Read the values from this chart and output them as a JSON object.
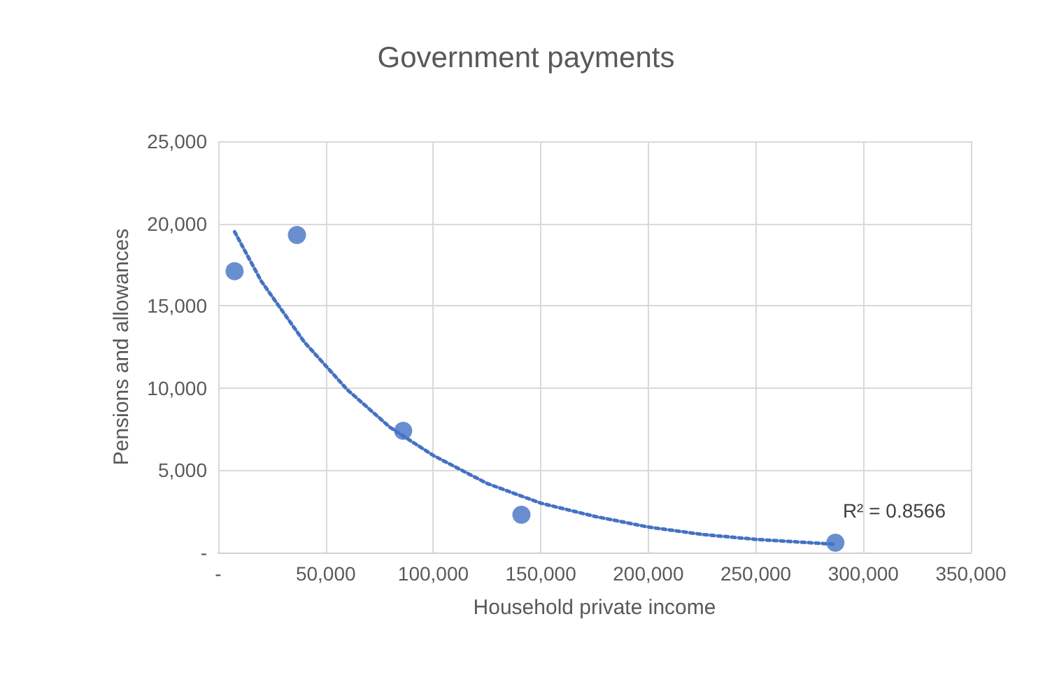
{
  "chart_data": {
    "type": "scatter",
    "title": "Government payments",
    "xlabel": "Household private income",
    "ylabel": "Pensions and allowances",
    "xlim": [
      0,
      350000
    ],
    "xticks": [
      {
        "value": 0,
        "label": "-"
      },
      {
        "value": 50000,
        "label": "50,000"
      },
      {
        "value": 100000,
        "label": "100,000"
      },
      {
        "value": 150000,
        "label": "150,000"
      },
      {
        "value": 200000,
        "label": "200,000"
      },
      {
        "value": 250000,
        "label": "250,000"
      },
      {
        "value": 300000,
        "label": "300,000"
      },
      {
        "value": 350000,
        "label": "350,000"
      }
    ],
    "ylim": [
      0,
      25000
    ],
    "yticks": [
      {
        "value": 0,
        "label": "-"
      },
      {
        "value": 5000,
        "label": "5,000"
      },
      {
        "value": 10000,
        "label": "10,000"
      },
      {
        "value": 15000,
        "label": "15,000"
      },
      {
        "value": 20000,
        "label": "20,000"
      },
      {
        "value": 25000,
        "label": "25,000"
      }
    ],
    "grid": true,
    "series": [
      {
        "color": "#4472c4",
        "marker": "circle",
        "x": [
          7600,
          36600,
          86000,
          141000,
          287000
        ],
        "values": [
          17100,
          19300,
          7400,
          2300,
          600
        ]
      },
      {
        "type": "line",
        "color": "#4472c4",
        "marker": "none",
        "line_style": "dotted",
        "x": [
          7600,
          20000,
          40000,
          60000,
          80000,
          100000,
          125000,
          150000,
          175000,
          200000,
          225000,
          250000,
          287000
        ],
        "values": [
          19500,
          16500,
          12800,
          9900,
          7600,
          5900,
          4200,
          3000,
          2200,
          1550,
          1100,
          800,
          500
        ]
      }
    ],
    "annotations": [
      "R² = 0.8566"
    ]
  }
}
